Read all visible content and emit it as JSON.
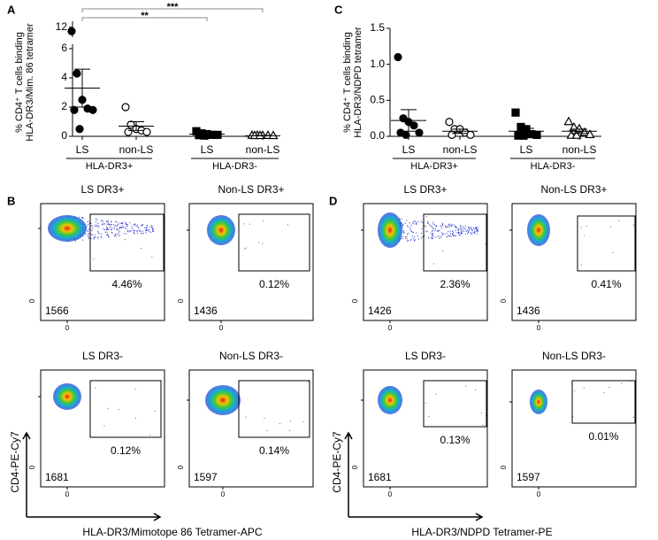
{
  "chart_data": [
    {
      "type": "dot",
      "panel": "A",
      "y_label": [
        "% CD4⁺ T cells binding",
        "HLA-DR3/Mim. 86 tetramer"
      ],
      "categories": [
        "LS",
        "non-LS",
        "LS",
        "non-LS"
      ],
      "groups": [
        "HLA-DR3+",
        "HLA-DR3-"
      ],
      "markers": [
        "circle-filled",
        "circle-open",
        "square-filled",
        "triangle-open"
      ],
      "color": "#000000",
      "values": [
        [
          11.8,
          4.3,
          2.5,
          1.9,
          1.8,
          1.8,
          0.5
        ],
        [
          2.0,
          0.8,
          0.5,
          0.4,
          0.3,
          0.3
        ],
        [
          0.35,
          0.2,
          0.15,
          0.1,
          0.1,
          0.08,
          0.05
        ],
        [
          0.05,
          0.05,
          0.04,
          0.04,
          0.03,
          0.03,
          0.03
        ]
      ],
      "means": [
        3.3,
        0.7,
        0.15,
        0.04
      ],
      "errors": [
        1.3,
        0.3,
        0.04,
        0.01
      ],
      "ylim": [
        0,
        12.3
      ],
      "axis_break": [
        6.3,
        11.5
      ],
      "yticks": [
        0,
        2,
        4,
        6,
        12
      ],
      "significance": [
        {
          "from": 0,
          "to": 3,
          "label": "***"
        },
        {
          "from": 0,
          "to": 2,
          "label": "**"
        }
      ]
    },
    {
      "type": "dot",
      "panel": "C",
      "y_label": [
        "% CD4⁺ T cells binding",
        "HLA-DR3/NDPD tetramer"
      ],
      "categories": [
        "LS",
        "non-LS",
        "LS",
        "non-LS"
      ],
      "groups": [
        "HLA-DR3+",
        "HLA-DR3-"
      ],
      "markers": [
        "circle-filled",
        "circle-open",
        "square-filled",
        "triangle-open"
      ],
      "color": "#000000",
      "values": [
        [
          1.1,
          0.25,
          0.2,
          0.15,
          0.05,
          0.05,
          0.02
        ],
        [
          0.2,
          0.1,
          0.1,
          0.05,
          0.02,
          0.02
        ],
        [
          0.33,
          0.13,
          0.1,
          0.03,
          0.02,
          0.01,
          0.01
        ],
        [
          0.2,
          0.12,
          0.1,
          0.05,
          0.02,
          0.01,
          0.01
        ]
      ],
      "means": [
        0.22,
        0.07,
        0.07,
        0.07
      ],
      "errors": [
        0.15,
        0.03,
        0.04,
        0.03
      ],
      "ylim": [
        0,
        1.5
      ],
      "yticks": [
        {
          "value": 0,
          "label": "0.0"
        },
        0.5,
        {
          "value": 1,
          "label": "1.0"
        },
        1.5
      ]
    }
  ],
  "flow_figures": [
    {
      "panel": "B",
      "y_label": "CD4-PE-Cy7",
      "x_label": "HLA-DR3/Mimotope 86 Tetramer-APC",
      "axis_zero": "0",
      "plots": [
        {
          "title": "LS DR3+",
          "gate_percent": "4.46%",
          "event_count": 1566
        },
        {
          "title": "Non-LS DR3+",
          "gate_percent": "0.12%",
          "event_count": 1436
        },
        {
          "title": "LS DR3-",
          "gate_percent": "0.12%",
          "event_count": 1681
        },
        {
          "title": "Non-LS DR3-",
          "gate_percent": "0.14%",
          "event_count": 1597
        }
      ]
    },
    {
      "panel": "D",
      "y_label": "CD4-PE-Cy7",
      "x_label": "HLA-DR3/NDPD Tetramer-PE",
      "axis_zero": "0",
      "plots": [
        {
          "title": "LS DR3+",
          "gate_percent": "2.36%",
          "event_count": 1426
        },
        {
          "title": "Non-LS DR3+",
          "gate_percent": "0.41%",
          "event_count": 1436
        },
        {
          "title": "LS DR3-",
          "gate_percent": "0.13%",
          "event_count": 1681
        },
        {
          "title": "Non-LS DR3-",
          "gate_percent": "0.01%",
          "event_count": 1597
        }
      ]
    }
  ]
}
